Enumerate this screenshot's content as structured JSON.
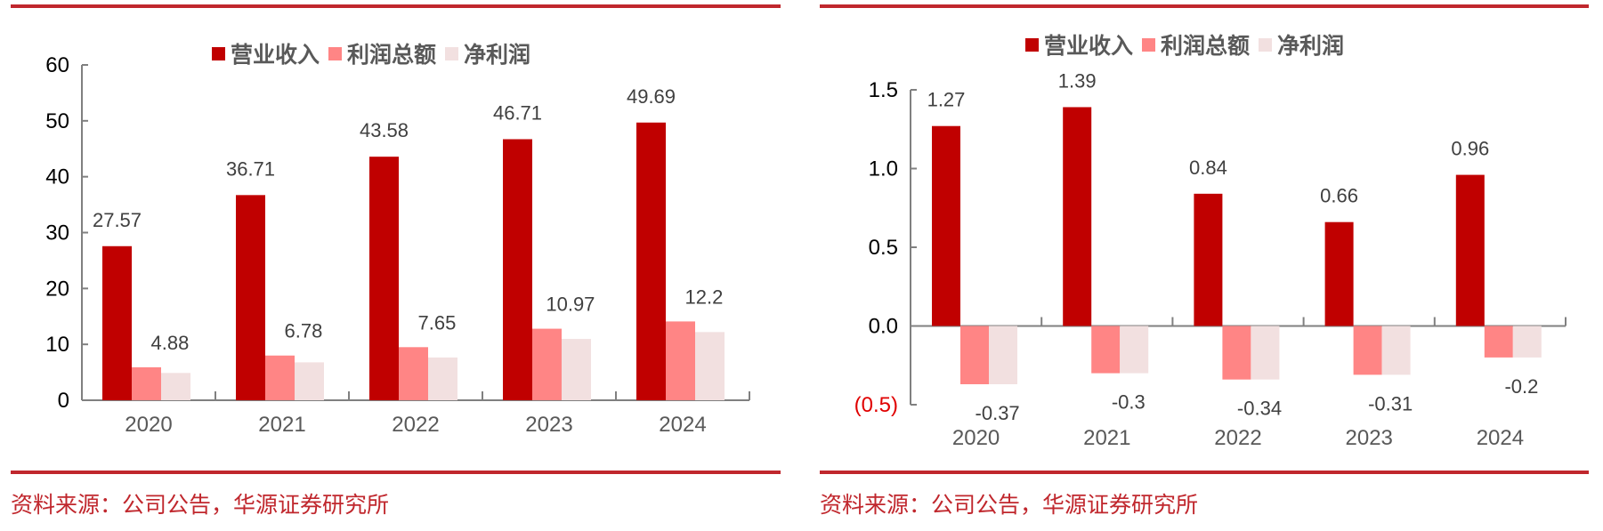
{
  "colors": {
    "rule": "#C0272D",
    "revenue": "#C00000",
    "total_profit": "#FF8585",
    "net_profit": "#F2E0E0",
    "axis": "#808080",
    "label": "#404040",
    "negative_tick": "#E00000"
  },
  "source_text": "资料来源：公司公告，华源证券研究所",
  "chart_data": [
    {
      "type": "bar",
      "legend": [
        "营业收入",
        "利润总额",
        "净利润"
      ],
      "legend_position": "top",
      "categories": [
        "2020",
        "2021",
        "2022",
        "2023",
        "2024"
      ],
      "series": [
        {
          "name": "营业收入",
          "values": [
            27.57,
            36.71,
            43.58,
            46.71,
            49.69
          ],
          "labels": [
            "27.57",
            "36.71",
            "43.58",
            "46.71",
            "49.69"
          ]
        },
        {
          "name": "利润总额",
          "values": [
            5.9,
            8.0,
            9.5,
            12.8,
            14.1
          ],
          "labels": null
        },
        {
          "name": "净利润",
          "values": [
            4.88,
            6.78,
            7.65,
            10.97,
            12.2
          ],
          "labels": [
            "4.88",
            "6.78",
            "7.65",
            "10.97",
            "12.2"
          ]
        }
      ],
      "yticks": [
        "0",
        "10",
        "20",
        "30",
        "40",
        "50",
        "60"
      ],
      "ylim": [
        0,
        60
      ],
      "grid": false
    },
    {
      "type": "bar",
      "legend": [
        "营业收入",
        "利润总额",
        "净利润"
      ],
      "legend_position": "top",
      "categories": [
        "2020",
        "2021",
        "2022",
        "2023",
        "2024"
      ],
      "series": [
        {
          "name": "营业收入",
          "values": [
            1.27,
            1.39,
            0.84,
            0.66,
            0.96
          ],
          "labels": [
            "1.27",
            "1.39",
            "0.84",
            "0.66",
            "0.96"
          ]
        },
        {
          "name": "利润总额",
          "values": [
            -0.37,
            -0.3,
            -0.34,
            -0.31,
            -0.2
          ],
          "labels": null
        },
        {
          "name": "净利润",
          "values": [
            -0.37,
            -0.3,
            -0.34,
            -0.31,
            -0.2
          ],
          "labels": [
            "-0.37",
            "-0.3",
            "-0.34",
            "-0.31",
            "-0.2"
          ]
        }
      ],
      "yticks": [
        "(0.5)",
        "0.0",
        "0.5",
        "1.0",
        "1.5"
      ],
      "ylim": [
        -0.5,
        1.5
      ],
      "grid": false
    }
  ]
}
